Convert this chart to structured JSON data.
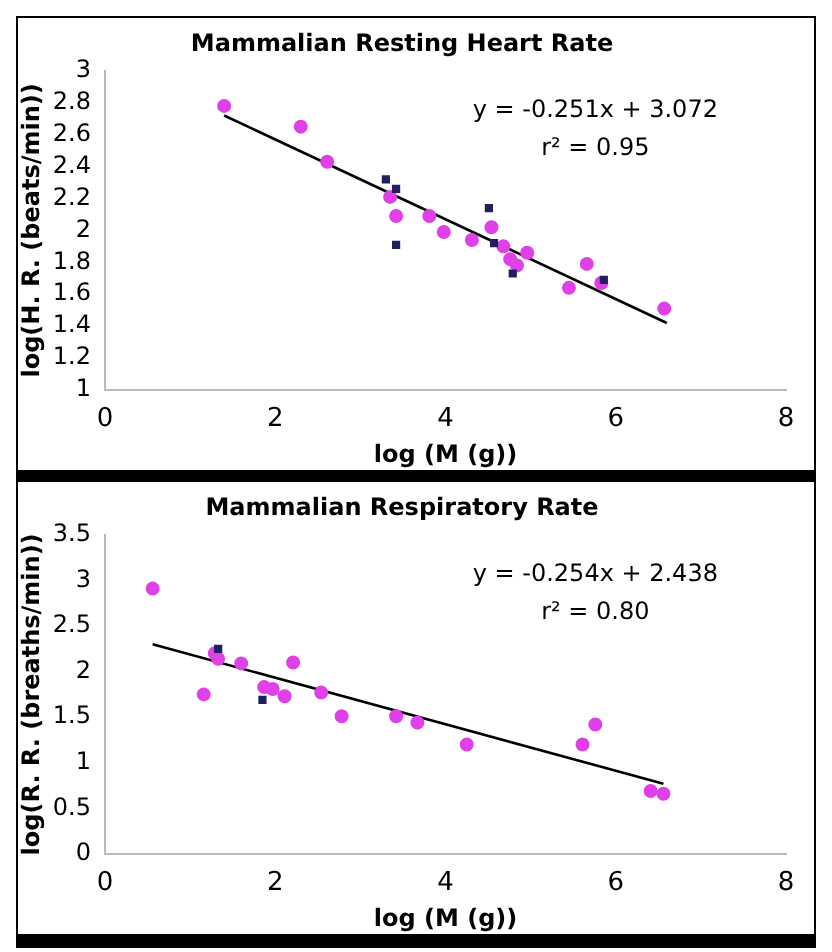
{
  "chart_data": [
    {
      "type": "scatter",
      "title": "Mammalian Resting Heart Rate",
      "xlabel": "log (M (g))",
      "ylabel": "log(H. R. (beats/min))",
      "xlim": [
        0,
        8
      ],
      "xticks": [
        0,
        2,
        4,
        6,
        8
      ],
      "ylim": [
        1,
        3
      ],
      "yticks": [
        1,
        1.2,
        1.4,
        1.6,
        1.8,
        2,
        2.2,
        2.4,
        2.6,
        2.8,
        3
      ],
      "grid": false,
      "legend": false,
      "annotations": [
        "y = -0.251x + 3.072",
        "r² = 0.95"
      ],
      "series": [
        {
          "type": "scatter",
          "marker": "circle",
          "color": "#e040e8",
          "x": [
            1.4,
            2.3,
            2.61,
            3.35,
            3.42,
            3.81,
            3.98,
            4.31,
            4.54,
            4.68,
            4.76,
            4.84,
            4.96,
            5.45,
            5.66,
            5.83,
            6.57
          ],
          "values": [
            2.78,
            2.65,
            2.43,
            2.21,
            2.09,
            2.09,
            1.99,
            1.94,
            2.02,
            1.9,
            1.82,
            1.78,
            1.86,
            1.64,
            1.79,
            1.67,
            1.51
          ]
        },
        {
          "type": "scatter",
          "marker": "square",
          "color": "#202060",
          "x": [
            3.3,
            3.42,
            3.42,
            4.51,
            4.57,
            4.79,
            5.86
          ],
          "values": [
            2.32,
            2.26,
            1.91,
            2.14,
            1.92,
            1.73,
            1.69
          ]
        },
        {
          "type": "line",
          "marker": "none",
          "color": "#000000",
          "x": [
            1.4,
            6.6
          ],
          "values": [
            2.72,
            1.42
          ]
        }
      ]
    },
    {
      "type": "scatter",
      "title": "Mammalian Respiratory Rate",
      "xlabel": "log (M (g))",
      "ylabel": "log(R. R. (breaths/min))",
      "xlim": [
        0,
        8
      ],
      "xticks": [
        0,
        2,
        4,
        6,
        8
      ],
      "ylim": [
        0,
        3.5
      ],
      "yticks": [
        0,
        0.5,
        1,
        1.5,
        2,
        2.5,
        3,
        3.5
      ],
      "grid": false,
      "legend": false,
      "annotations": [
        "y = -0.254x + 2.438",
        "r² = 0.80"
      ],
      "series": [
        {
          "type": "scatter",
          "marker": "circle",
          "color": "#e040e8",
          "x": [
            0.56,
            1.16,
            1.29,
            1.33,
            1.6,
            1.87,
            1.97,
            2.11,
            2.21,
            2.54,
            2.78,
            3.42,
            3.67,
            4.25,
            5.61,
            5.76,
            6.41,
            6.56
          ],
          "values": [
            2.91,
            1.75,
            2.2,
            2.14,
            2.09,
            1.83,
            1.81,
            1.73,
            2.1,
            1.77,
            1.51,
            1.51,
            1.44,
            1.2,
            1.2,
            1.42,
            0.69,
            0.66
          ]
        },
        {
          "type": "scatter",
          "marker": "square",
          "color": "#202060",
          "x": [
            1.33,
            1.85
          ],
          "values": [
            2.25,
            1.69
          ]
        },
        {
          "type": "line",
          "marker": "none",
          "color": "#000000",
          "x": [
            0.56,
            6.56
          ],
          "values": [
            2.3,
            0.77
          ]
        }
      ]
    }
  ]
}
